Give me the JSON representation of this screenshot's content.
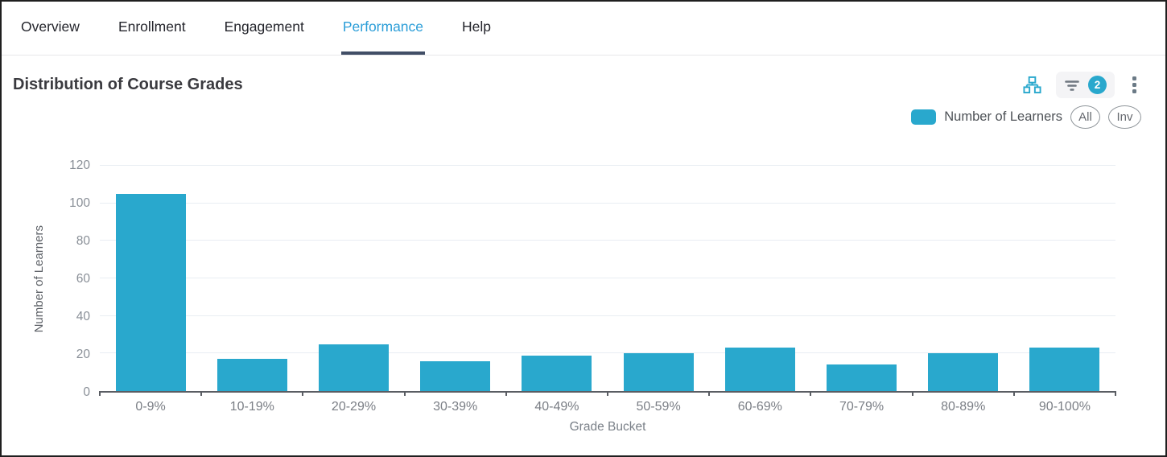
{
  "tabs": [
    {
      "label": "Overview",
      "active": false
    },
    {
      "label": "Enrollment",
      "active": false
    },
    {
      "label": "Engagement",
      "active": false
    },
    {
      "label": "Performance",
      "active": true
    },
    {
      "label": "Help",
      "active": false
    }
  ],
  "header": {
    "title": "Distribution of Course Grades",
    "filter_count": "2",
    "icons": {
      "hierarchy": "hierarchy-icon",
      "filter": "filter-icon",
      "kebab": "kebab-menu-icon"
    }
  },
  "legend": {
    "label": "Number of Learners",
    "all_label": "All",
    "inv_label": "Inv",
    "swatch_color": "#29a8cd"
  },
  "chart_data": {
    "type": "bar",
    "title": "Distribution of Course Grades",
    "categories": [
      "0-9%",
      "10-19%",
      "20-29%",
      "30-39%",
      "40-49%",
      "50-59%",
      "60-69%",
      "70-79%",
      "80-89%",
      "90-100%"
    ],
    "values": [
      105,
      17,
      25,
      16,
      19,
      20,
      23,
      14,
      20,
      23
    ],
    "series_name": "Number of Learners",
    "xlabel": "Grade Bucket",
    "ylabel": "Number of Learners",
    "ylim": [
      0,
      120
    ],
    "ytick_step": 20,
    "grid": true,
    "bar_color": "#29a8cd",
    "legend_position": "top-right"
  },
  "colors": {
    "accent_teal": "#29a8cd",
    "active_tab_text": "#2c9ed8",
    "active_tab_underline": "#414e66",
    "gridline": "#e9edf3"
  }
}
